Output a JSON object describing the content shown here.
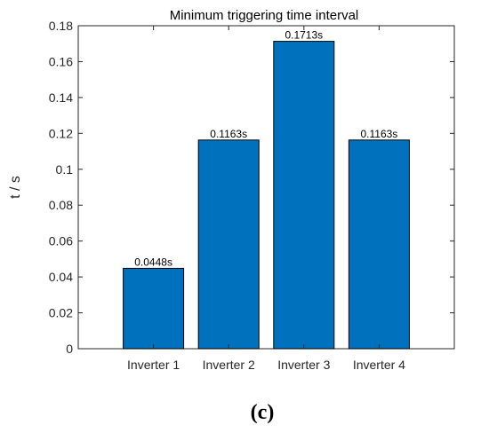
{
  "chart_data": {
    "type": "bar",
    "title": "Minimum triggering time interval",
    "xlabel": "",
    "ylabel": "t / s",
    "categories": [
      "Inverter 1",
      "Inverter 2",
      "Inverter 3",
      "Inverter 4"
    ],
    "values": [
      0.0448,
      0.1163,
      0.1713,
      0.1163
    ],
    "data_labels": [
      "0.0448s",
      "0.1163s",
      "0.1713s",
      "0.1163s"
    ],
    "ylim": [
      0,
      0.18
    ],
    "yticks": [
      0,
      0.02,
      0.04,
      0.06,
      0.08,
      0.1,
      0.12,
      0.14,
      0.16,
      0.18
    ],
    "ytick_labels": [
      "0",
      "0.02",
      "0.04",
      "0.06",
      "0.08",
      "0.1",
      "0.12",
      "0.14",
      "0.16",
      "0.18"
    ],
    "grid": false,
    "bar_color": "#0072BD",
    "bar_edge_color": "#000000"
  },
  "panel_label": "(c)"
}
